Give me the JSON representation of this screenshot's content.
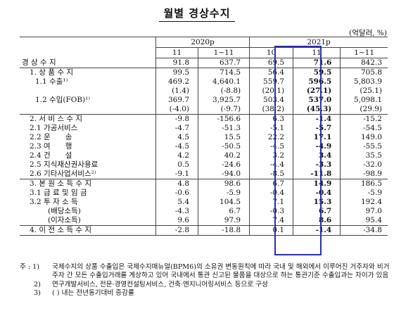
{
  "title": "월별 경상수지",
  "unit": "(억달러, %)",
  "header": {
    "year_2020": "2020p",
    "year_2021": "2021p",
    "cols": [
      "11",
      "1~11",
      "10",
      "11",
      "1~11"
    ]
  },
  "rows": [
    {
      "label": "경 상 수 지",
      "vals": [
        "91.8",
        "637.7",
        "69.5",
        "71.6",
        "842.3"
      ],
      "indent": 0
    },
    {
      "label": "1. 상 품 수 지",
      "vals": [
        "99.5",
        "714.5",
        "56.4",
        "59.5",
        "705.8"
      ],
      "indent": 1
    },
    {
      "label": "1.1 수출¹⁾",
      "vals": [
        "469.2",
        "4,640.1",
        "559.7",
        "596.5",
        "5,803.9"
      ],
      "indent": 2
    },
    {
      "label": "",
      "vals": [
        "(1.4)",
        "(-8.8)",
        "(20.1)",
        "(27.1)",
        "(25.1)"
      ],
      "indent": 2
    },
    {
      "label": "1.2 수입(FOB)¹⁾",
      "vals": [
        "369.7",
        "3,925.7",
        "503.4",
        "537.0",
        "5,098.1"
      ],
      "indent": 2
    },
    {
      "label": "",
      "vals": [
        "(-4.0)",
        "(-9.7)",
        "(38.2)",
        "(45.3)",
        "(29.9)"
      ],
      "indent": 2
    },
    {
      "label": "2. 서 비 스 수 지",
      "vals": [
        "-9.8",
        "-156.6",
        "6.3",
        "-1.4",
        "-15.2"
      ],
      "indent": 1
    },
    {
      "label": "2.1 가공서비스",
      "vals": [
        "-4.7",
        "-51.3",
        "-5.1",
        "-5.7",
        "-54.5"
      ],
      "indent": 1
    },
    {
      "label": "2.2 운　　송",
      "vals": [
        "4.5",
        "15.5",
        "22.2",
        "17.1",
        "149.0"
      ],
      "indent": 1
    },
    {
      "label": "2.3 여　　행",
      "vals": [
        "-4.5",
        "-50.5",
        "-4.5",
        "-4.9",
        "-55.5"
      ],
      "indent": 1
    },
    {
      "label": "2.4 건　　설",
      "vals": [
        "4.2",
        "40.2",
        "3.2",
        "3.4",
        "35.5"
      ],
      "indent": 1
    },
    {
      "label": "2.5 지식재산권사용료",
      "vals": [
        "0.5",
        "-24.6",
        "-4.4",
        "-3.3",
        "-32.0"
      ],
      "indent": 1
    },
    {
      "label": "2.6 기타사업서비스²⁾",
      "vals": [
        "-9.1",
        "-94.0",
        "-8.5",
        "-11.8",
        "-98.9"
      ],
      "indent": 1
    },
    {
      "label": "3. 본 원 소 득 수 지",
      "vals": [
        "4.8",
        "98.6",
        "6.7",
        "14.9",
        "186.5"
      ],
      "indent": 1
    },
    {
      "label": "3.1 급 료 및 임 금",
      "vals": [
        "-0.6",
        "-5.9",
        "-0.4",
        "-0.4",
        "-5.9"
      ],
      "indent": 1
    },
    {
      "label": "3.2 투 자 소 득",
      "vals": [
        "5.4",
        "104.5",
        "7.1",
        "15.3",
        "192.4"
      ],
      "indent": 1
    },
    {
      "label": "(배당소득)",
      "vals": [
        "-4.3",
        "6.7",
        "-0.3",
        "6.7",
        "97.0"
      ],
      "indent": 3
    },
    {
      "label": "(이자소득)",
      "vals": [
        "9.6",
        "97.9",
        "7.4",
        "8.6",
        "95.4"
      ],
      "indent": 3
    },
    {
      "label": "4. 이 전 소 득 수 지",
      "vals": [
        "-2.8",
        "-18.8",
        "0.1",
        "-1.4",
        "-34.8"
      ],
      "indent": 1
    }
  ],
  "notes": [
    {
      "mark": "주 : 1)",
      "text": "국제수지의 상품 수출입은 국제수지매뉴얼(BPM6)의 소유권 변동원칙에 따라 국내 및 해외에서 이루어진 거주자와 비거주자 간 모든 수출입거래를 계상하고 있어 국내에서 통관 신고된 물품을 대상으로 하는 통관기준 수출입과는 차이가 있음"
    },
    {
      "mark": "2)",
      "text": "연구개발서비스, 전문·경영컨설팅서비스, 건축·엔지니어링서비스 등으로 구성"
    },
    {
      "mark": "3)",
      "text": "( ) 내는 전년동기대비 증감률"
    }
  ],
  "highlight_color": "#2233aa"
}
